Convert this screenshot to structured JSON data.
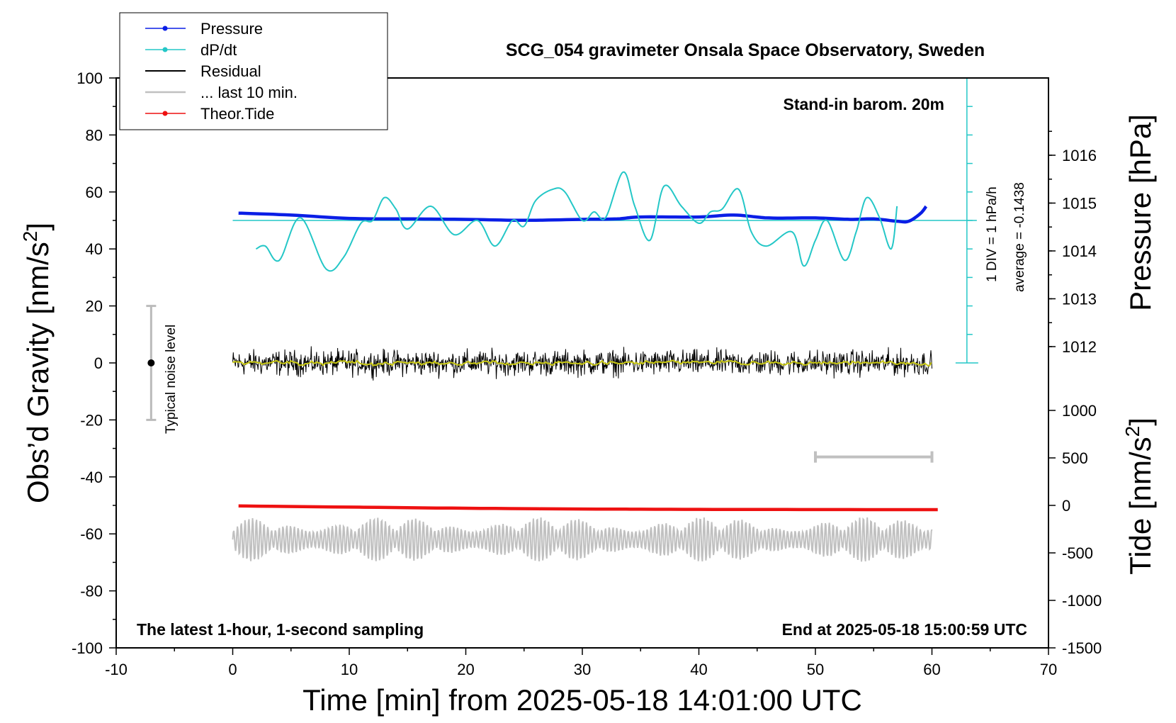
{
  "chart_data": {
    "type": "line",
    "title": "SCG_054 gravimeter Onsala Space Observatory, Sweden",
    "xlabel": "Time [min] from 2025-05-18 14:01:00 UTC",
    "ylabel_left": "Obs’d Gravity [nm/s²]",
    "ylabel_left_base": "Obs’d Gravity [nm/s",
    "ylabel_left_sup": "2",
    "ylabel_left_end": "]",
    "ylabel_right_top": "Pressure [hPa]",
    "ylabel_right_bottom_base": "Tide [nm/s",
    "ylabel_right_bottom_sup": "2",
    "ylabel_right_bottom_end": "]",
    "xlim": [
      -10,
      70
    ],
    "ylim": [
      -100,
      100
    ],
    "x_ticks": [
      "-10",
      "0",
      "10",
      "20",
      "30",
      "40",
      "50",
      "60",
      "70"
    ],
    "y_ticks": [
      "-100",
      "-80",
      "-60",
      "-40",
      "-20",
      "0",
      "20",
      "40",
      "60",
      "80",
      "100"
    ],
    "pressure_ticks": [
      "1012",
      "1013",
      "1014",
      "1015",
      "1016"
    ],
    "tide_ticks": [
      "-1500",
      "-1000",
      "-500",
      "0",
      "500",
      "1000"
    ],
    "annotations": {
      "barometer": "Stand-in barom. 20m",
      "div_label": "1 DIV = 1 hPa/h",
      "average_label": "average = -0.1438",
      "noise_label": "Typical noise level",
      "bottom_left": "The latest 1-hour, 1-second sampling",
      "bottom_right": "End at 2025-05-18 15:00:59 UTC"
    },
    "legend_position": "top-left",
    "legend": [
      "Pressure",
      "dP/dt",
      "Residual",
      "... last 10 min.",
      "Theor.Tide"
    ],
    "colors": {
      "pressure": "#0a1ee6",
      "dpdt": "#24c7c7",
      "residual": "#000000",
      "residual_smooth": "#c8c814",
      "last10": "#c0c0c0",
      "tide": "#ee1111",
      "dpdt_axis": "#24c7c7"
    },
    "series": [
      {
        "name": "Pressure",
        "unit": "hPa",
        "x": [
          0.5,
          5,
          10,
          15,
          20,
          25,
          30,
          33,
          35,
          40,
          43,
          46,
          50,
          53,
          55,
          57,
          58,
          59,
          59.5
        ],
        "values": [
          1014.79,
          1014.75,
          1014.68,
          1014.67,
          1014.66,
          1014.64,
          1014.66,
          1014.67,
          1014.71,
          1014.71,
          1014.75,
          1014.69,
          1014.69,
          1014.66,
          1014.67,
          1014.62,
          1014.62,
          1014.78,
          1014.93
        ]
      },
      {
        "name": "dP/dt",
        "unit": "gravity axis units",
        "x": [
          2,
          2.8,
          4,
          5.8,
          8,
          9.5,
          11,
          12,
          13,
          14,
          15,
          17,
          19,
          21,
          22.5,
          24,
          25,
          26,
          27.5,
          28.5,
          30,
          31,
          32,
          33.5,
          34.5,
          35.8,
          37,
          38.5,
          40,
          41,
          42,
          43.4,
          44.5,
          45.8,
          48,
          49,
          50,
          51,
          52.5,
          53.5,
          54.4,
          55.5,
          56.5,
          57
        ],
        "values": [
          40,
          41,
          36,
          51,
          33,
          37,
          49,
          50,
          58,
          54,
          47,
          55,
          45,
          50,
          41,
          50,
          48,
          57,
          61,
          60,
          50,
          53,
          51,
          67,
          55,
          43,
          62,
          55,
          49,
          53,
          54,
          61,
          46,
          41,
          46,
          34,
          43,
          50,
          36,
          46,
          58,
          51,
          40,
          55
        ]
      },
      {
        "name": "Residual",
        "unit": "nm/s²",
        "x": [
          0,
          60
        ],
        "values": [
          0,
          0
        ],
        "noise_band": [
          -7,
          8
        ]
      },
      {
        "name": "... last 10 min.",
        "x": [
          50,
          60
        ],
        "values": [
          -33,
          -33
        ]
      },
      {
        "name": "Theor.Tide",
        "unit": "nm/s²",
        "x": [
          0.5,
          10,
          20,
          30,
          40,
          50,
          60.5
        ],
        "values": [
          -6,
          -18,
          -30,
          -38,
          -42,
          -44,
          -45
        ]
      }
    ],
    "noise_bar": {
      "x": -7,
      "low": -20,
      "high": 20,
      "center": 0
    },
    "dpdt_axis": {
      "x": 63,
      "zero_level": 50,
      "ymin": 0,
      "ymax": 100
    },
    "grey_trace": {
      "center": -62,
      "amplitude_max": 8
    }
  }
}
